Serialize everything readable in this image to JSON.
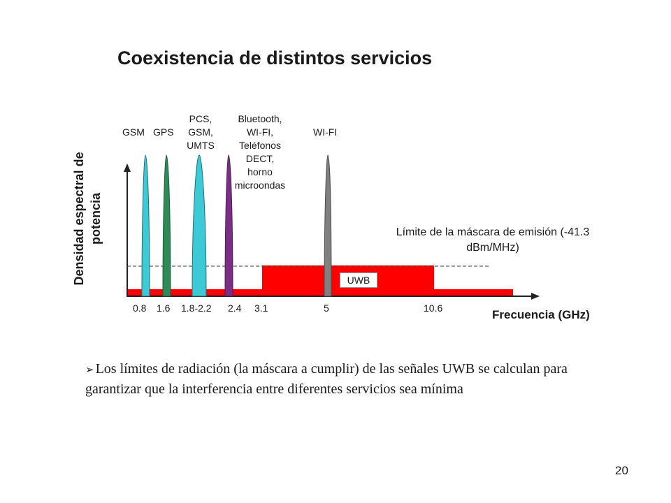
{
  "title": "Coexistencia de distintos servicios",
  "y_axis_label": "Densidad espectral de potencia",
  "x_axis_label": "Frecuencia (GHz)",
  "services": [
    {
      "label": "GSM",
      "color": "#3ec9d6"
    },
    {
      "label": "GPS",
      "color": "#2e8b57"
    },
    {
      "label": "PCS,\nGSM,\nUMTS",
      "color": "#3ec9d6"
    },
    {
      "label": "Bluetooth,\nWI-FI,\nTeléfonos\nDECT,\nhorno\nmicroondas",
      "color": "#7a2e86"
    },
    {
      "label": "WI-FI",
      "color": "#808080"
    }
  ],
  "ticks": [
    "0.8",
    "1.6",
    "1.8-2.2",
    "2.4",
    "3.1",
    "5",
    "10.6"
  ],
  "mask_label": "Límite de la máscara de emisión (-41.3 dBm/MHz)",
  "uwb_label": "UWB",
  "mask_color": "#ff0000",
  "bullet_text": "Los límites de radiación (la máscara a cumplir) de las señales UWB se calculan para garantizar que la interferencia entre diferentes servicios sea mínima",
  "page_number": "20"
}
